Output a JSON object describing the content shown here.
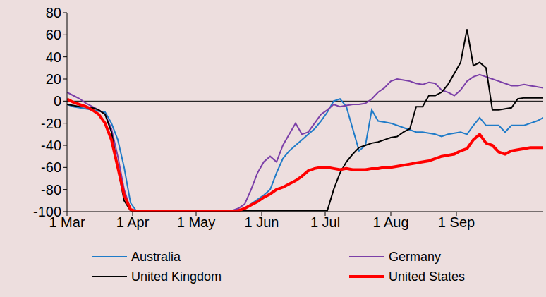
{
  "chart_data": {
    "type": "line",
    "x": [
      0,
      3,
      6,
      9,
      12,
      15,
      18,
      21,
      24,
      27,
      30,
      33,
      36,
      39,
      42,
      45,
      48,
      51,
      54,
      57,
      60,
      63,
      66,
      69,
      72,
      75,
      78,
      81,
      84,
      87,
      90,
      93,
      96,
      99,
      102,
      105,
      108,
      111,
      114,
      117,
      120,
      123,
      126,
      129,
      132,
      135,
      138,
      141,
      144,
      147,
      150,
      153,
      156,
      159,
      162,
      165,
      168,
      171,
      174,
      177,
      180,
      183,
      186,
      189,
      192,
      195,
      198,
      201,
      204,
      207,
      210,
      213,
      216,
      219,
      222,
      225
    ],
    "xlim": [
      0,
      225
    ],
    "xticks": [
      {
        "value": 0,
        "label": "1 Mar"
      },
      {
        "value": 31,
        "label": "1 Apr"
      },
      {
        "value": 61,
        "label": "1 May"
      },
      {
        "value": 92,
        "label": "1 Jun"
      },
      {
        "value": 122,
        "label": "1 Jul"
      },
      {
        "value": 153,
        "label": "1 Aug"
      },
      {
        "value": 184,
        "label": "1 Sep"
      }
    ],
    "ylim": [
      -100,
      80
    ],
    "yticks": [
      -100,
      -80,
      -60,
      -40,
      -20,
      0,
      20,
      40,
      60,
      80
    ],
    "legend": "bottom",
    "series": [
      {
        "name": "Australia",
        "color": "#1F7BC8",
        "values": [
          -3,
          -5,
          -6,
          -7,
          -8,
          -9,
          -10,
          -20,
          -35,
          -60,
          -92,
          -100,
          -100,
          -100,
          -100,
          -100,
          -100,
          -100,
          -100,
          -100,
          -100,
          -100,
          -100,
          -100,
          -100,
          -100,
          -100,
          -99,
          -97,
          -93,
          -89,
          -85,
          -80,
          -65,
          -52,
          -45,
          -40,
          -35,
          -30,
          -25,
          -18,
          -10,
          0,
          2,
          -5,
          -25,
          -45,
          -40,
          -8,
          -18,
          -19,
          -20,
          -22,
          -24,
          -26,
          -28,
          -28,
          -29,
          -30,
          -32,
          -30,
          -29,
          -28,
          -30,
          -22,
          -15,
          -22,
          -22,
          -22,
          -28,
          -22,
          -22,
          -22,
          -20,
          -18,
          -15
        ]
      },
      {
        "name": "Germany",
        "color": "#7B3FA8",
        "values": [
          8,
          5,
          2,
          -2,
          -5,
          -8,
          -12,
          -25,
          -50,
          -80,
          -98,
          -100,
          -100,
          -100,
          -100,
          -100,
          -100,
          -100,
          -100,
          -100,
          -100,
          -100,
          -100,
          -100,
          -100,
          -100,
          -99,
          -97,
          -93,
          -80,
          -65,
          -55,
          -50,
          -55,
          -40,
          -30,
          -20,
          -30,
          -28,
          -20,
          -12,
          -8,
          -3,
          -5,
          -4,
          -3,
          -3,
          -2,
          2,
          8,
          12,
          18,
          20,
          19,
          18,
          16,
          15,
          17,
          16,
          10,
          8,
          5,
          10,
          18,
          22,
          24,
          22,
          20,
          18,
          16,
          14,
          14,
          15,
          14,
          13,
          12
        ]
      },
      {
        "name": "United Kingdom",
        "color": "#000000",
        "values": [
          -3,
          -4,
          -5,
          -5,
          -6,
          -8,
          -12,
          -28,
          -60,
          -90,
          -99,
          -100,
          -100,
          -100,
          -100,
          -100,
          -100,
          -100,
          -100,
          -100,
          -100,
          -100,
          -100,
          -100,
          -100,
          -100,
          -99,
          -99,
          -99,
          -99,
          -99,
          -99,
          -99,
          -99,
          -99,
          -99,
          -99,
          -99,
          -99,
          -99,
          -99,
          -99,
          -80,
          -65,
          -55,
          -48,
          -42,
          -40,
          -38,
          -37,
          -35,
          -33,
          -32,
          -28,
          -25,
          -5,
          -5,
          5,
          5,
          8,
          15,
          25,
          35,
          65,
          32,
          35,
          30,
          -8,
          -8,
          -7,
          -6,
          2,
          3,
          3,
          3,
          3
        ]
      },
      {
        "name": "United States",
        "color": "#FF0000",
        "values": [
          2,
          -1,
          -3,
          -5,
          -8,
          -12,
          -20,
          -35,
          -60,
          -85,
          -98,
          -100,
          -100,
          -100,
          -100,
          -100,
          -100,
          -100,
          -100,
          -100,
          -100,
          -100,
          -100,
          -100,
          -100,
          -100,
          -100,
          -99,
          -97,
          -94,
          -91,
          -87,
          -84,
          -80,
          -78,
          -75,
          -72,
          -68,
          -63,
          -61,
          -60,
          -60,
          -61,
          -62,
          -61,
          -62,
          -62,
          -62,
          -61,
          -61,
          -60,
          -60,
          -59,
          -58,
          -57,
          -56,
          -55,
          -54,
          -52,
          -50,
          -49,
          -48,
          -45,
          -43,
          -35,
          -30,
          -38,
          -40,
          -46,
          -48,
          -45,
          -44,
          -43,
          -42,
          -42,
          -42
        ]
      }
    ]
  }
}
